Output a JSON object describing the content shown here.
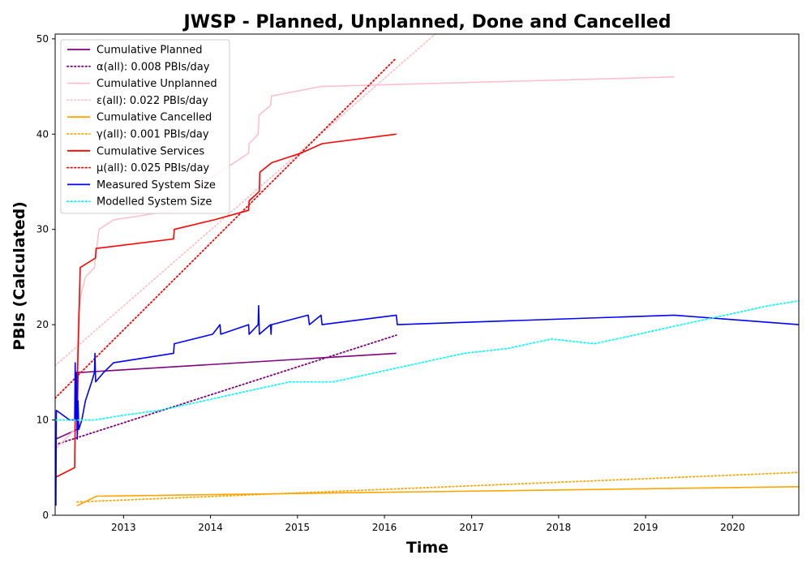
{
  "chart_data": {
    "type": "line",
    "title": "JWSP - Planned, Unplanned, Done  and Cancelled",
    "xlabel": "Time",
    "ylabel": "PBIs (Calculated)",
    "xlim": [
      "2012-03-20",
      "2020-10-05"
    ],
    "ylim": [
      0,
      50.5
    ],
    "x_ticks": [
      "2013",
      "2014",
      "2015",
      "2016",
      "2017",
      "2018",
      "2019",
      "2020"
    ],
    "y_ticks": [
      0,
      10,
      20,
      30,
      40,
      50
    ],
    "legend_position": "top-left",
    "grid": false,
    "series": [
      {
        "name": "Cumulative Planned",
        "color": "#800080",
        "style": "solid",
        "points": [
          [
            "2012-03-23",
            8
          ],
          [
            "2012-06-20",
            9
          ],
          [
            "2012-06-24",
            15
          ],
          [
            "2012-07-10",
            15
          ],
          [
            "2016-02-20",
            17
          ]
        ]
      },
      {
        "name": "α(all): 0.008 PBIs/day",
        "color": "#800080",
        "style": "dotted",
        "points": [
          [
            "2012-03-20",
            7.4
          ],
          [
            "2016-02-20",
            18.9
          ]
        ]
      },
      {
        "name": "Cumulative Unplanned",
        "color": "#ffc0cb",
        "style": "solid",
        "points": [
          [
            "2012-03-23",
            7
          ],
          [
            "2012-06-10",
            9
          ],
          [
            "2012-06-20",
            15
          ],
          [
            "2012-06-26",
            21
          ],
          [
            "2012-07-05",
            23
          ],
          [
            "2012-07-25",
            25
          ],
          [
            "2012-09-01",
            26
          ],
          [
            "2012-09-05",
            27
          ],
          [
            "2012-09-10",
            28
          ],
          [
            "2012-09-20",
            30
          ],
          [
            "2012-11-20",
            31
          ],
          [
            "2013-08-05",
            32
          ],
          [
            "2013-08-10",
            33
          ],
          [
            "2014-06-10",
            38
          ],
          [
            "2014-06-12",
            39
          ],
          [
            "2014-07-20",
            40
          ],
          [
            "2014-07-24",
            42
          ],
          [
            "2014-09-10",
            43
          ],
          [
            "2014-09-14",
            44
          ],
          [
            "2015-04-10",
            45
          ],
          [
            "2019-05-01",
            46
          ]
        ]
      },
      {
        "name": "ε(all): 0.022 PBIs/day",
        "color": "#ffc0cb",
        "style": "dotted",
        "points": [
          [
            "2012-03-20",
            15.7
          ],
          [
            "2016-08-01",
            50.5
          ]
        ]
      },
      {
        "name": "Cumulative Cancelled",
        "color": "#ffa500",
        "style": "solid",
        "points": [
          [
            "2012-06-20",
            1
          ],
          [
            "2012-09-10",
            2
          ],
          [
            "2020-10-05",
            3
          ]
        ]
      },
      {
        "name": "γ(all): 0.001 PBIs/day",
        "color": "#ffa500",
        "style": "dotted",
        "points": [
          [
            "2012-06-20",
            1.4
          ],
          [
            "2020-10-05",
            4.5
          ]
        ]
      },
      {
        "name": "Cumulative Services",
        "color": "#ff0000",
        "style": "solid",
        "points": [
          [
            "2012-03-23",
            4
          ],
          [
            "2012-06-10",
            5
          ],
          [
            "2012-06-12",
            10
          ],
          [
            "2012-06-22",
            15
          ],
          [
            "2012-06-28",
            21
          ],
          [
            "2012-07-03",
            26
          ],
          [
            "2012-09-05",
            27
          ],
          [
            "2012-09-08",
            28
          ],
          [
            "2013-07-30",
            29
          ],
          [
            "2013-08-02",
            30
          ],
          [
            "2014-01-15",
            31
          ],
          [
            "2014-06-10",
            32
          ],
          [
            "2014-06-12",
            33
          ],
          [
            "2014-07-25",
            34
          ],
          [
            "2014-07-27",
            36
          ],
          [
            "2014-09-15",
            37
          ],
          [
            "2015-01-15",
            38
          ],
          [
            "2015-04-15",
            39
          ],
          [
            "2016-02-20",
            40
          ]
        ]
      },
      {
        "name": "μ(all): 0.025 PBIs/day",
        "color": "#ff0000",
        "style": "dotted",
        "points": [
          [
            "2012-03-20",
            12.3
          ],
          [
            "2016-02-20",
            48
          ]
        ]
      },
      {
        "name": "Measured System Size",
        "color": "#0000ff",
        "style": "solid",
        "points": [
          [
            "2012-03-23",
            1
          ],
          [
            "2012-03-25",
            11
          ],
          [
            "2012-05-20",
            10
          ],
          [
            "2012-06-10",
            10
          ],
          [
            "2012-06-12",
            16
          ],
          [
            "2012-06-15",
            10
          ],
          [
            "2012-06-18",
            15
          ],
          [
            "2012-06-21",
            8
          ],
          [
            "2012-06-24",
            12
          ],
          [
            "2012-06-27",
            9
          ],
          [
            "2012-07-10",
            10
          ],
          [
            "2012-07-25",
            12
          ],
          [
            "2012-08-20",
            14
          ],
          [
            "2012-09-01",
            15
          ],
          [
            "2012-09-03",
            17
          ],
          [
            "2012-09-06",
            14
          ],
          [
            "2012-10-10",
            15
          ],
          [
            "2012-11-20",
            16
          ],
          [
            "2013-07-30",
            17
          ],
          [
            "2013-08-02",
            18
          ],
          [
            "2014-01-10",
            19
          ],
          [
            "2014-02-10",
            20
          ],
          [
            "2014-02-13",
            19
          ],
          [
            "2014-06-10",
            20
          ],
          [
            "2014-06-12",
            19
          ],
          [
            "2014-07-20",
            20
          ],
          [
            "2014-07-22",
            22
          ],
          [
            "2014-07-25",
            19
          ],
          [
            "2014-09-10",
            20
          ],
          [
            "2014-09-12",
            19
          ],
          [
            "2014-09-14",
            20
          ],
          [
            "2015-02-15",
            21
          ],
          [
            "2015-02-20",
            20
          ],
          [
            "2015-04-10",
            21
          ],
          [
            "2015-04-14",
            20
          ],
          [
            "2016-02-20",
            21
          ],
          [
            "2016-02-24",
            20
          ],
          [
            "2019-05-01",
            21
          ],
          [
            "2020-10-05",
            20
          ]
        ]
      },
      {
        "name": "Modelled System Size",
        "color": "#00ffff",
        "style": "dotted",
        "points": [
          [
            "2012-03-23",
            10
          ],
          [
            "2012-09-01",
            10
          ],
          [
            "2013-01-01",
            10.5
          ],
          [
            "2013-06-01",
            11
          ],
          [
            "2013-12-01",
            12
          ],
          [
            "2014-06-01",
            13
          ],
          [
            "2014-12-01",
            14
          ],
          [
            "2015-06-01",
            14
          ],
          [
            "2015-12-01",
            15
          ],
          [
            "2016-06-01",
            16
          ],
          [
            "2016-12-01",
            17
          ],
          [
            "2017-06-01",
            17.5
          ],
          [
            "2017-12-01",
            18.5
          ],
          [
            "2018-06-01",
            18
          ],
          [
            "2018-12-01",
            19
          ],
          [
            "2019-06-01",
            20
          ],
          [
            "2019-12-01",
            21
          ],
          [
            "2020-06-01",
            22
          ],
          [
            "2020-10-05",
            22.5
          ]
        ]
      }
    ]
  }
}
